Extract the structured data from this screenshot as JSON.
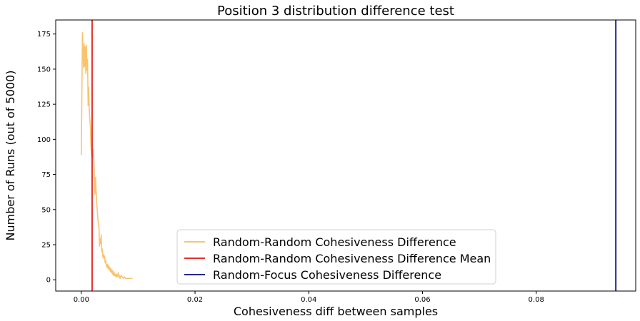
{
  "chart_data": {
    "type": "line",
    "title": "Position 3 distribution difference test",
    "xlabel": "Cohesiveness diff between samples",
    "ylabel": "Number of Runs (out of 5000)",
    "xlim": [
      -0.0045,
      0.0975
    ],
    "ylim": [
      -8,
      185
    ],
    "xticks": [
      0.0,
      0.02,
      0.04,
      0.06,
      0.08
    ],
    "xtick_labels": [
      "0.00",
      "0.02",
      "0.04",
      "0.06",
      "0.08"
    ],
    "yticks": [
      0,
      25,
      50,
      75,
      100,
      125,
      150,
      175
    ],
    "ytick_labels": [
      "0",
      "25",
      "50",
      "75",
      "100",
      "125",
      "150",
      "175"
    ],
    "grid": false,
    "legend_position": "bottom-center",
    "series": [
      {
        "name": "Random-Random Cohesiveness Difference",
        "kind": "line",
        "color": "#f9c46f",
        "x": [
          0.0,
          0.0002,
          0.0004,
          0.0005,
          0.0006,
          0.0007,
          0.0008,
          0.0009,
          0.001,
          0.0011,
          0.0012,
          0.0013,
          0.0014,
          0.0015,
          0.0016,
          0.0017,
          0.0018,
          0.0019,
          0.002,
          0.0021,
          0.0022,
          0.0023,
          0.0024,
          0.0025,
          0.0026,
          0.0027,
          0.0028,
          0.0029,
          0.003,
          0.0031,
          0.0032,
          0.0033,
          0.0034,
          0.0035,
          0.0036,
          0.0037,
          0.0038,
          0.0039,
          0.004,
          0.0041,
          0.0042,
          0.0043,
          0.0044,
          0.0045,
          0.0046,
          0.0047,
          0.0048,
          0.0049,
          0.005,
          0.0051,
          0.0052,
          0.0053,
          0.0054,
          0.0055,
          0.0056,
          0.0057,
          0.0058,
          0.0059,
          0.006,
          0.0061,
          0.0062,
          0.0063,
          0.0064,
          0.0065,
          0.0066,
          0.0067,
          0.0068,
          0.0069,
          0.007,
          0.0072,
          0.0074,
          0.0076,
          0.0078,
          0.008,
          0.0082,
          0.0085,
          0.0088,
          0.009
        ],
        "y": [
          89,
          176,
          151,
          168,
          152,
          166,
          147,
          167,
          149,
          157,
          124,
          137,
          122,
          114,
          109,
          95,
          88,
          92,
          87,
          93,
          85,
          72,
          61,
          73,
          64,
          55,
          50,
          44,
          40,
          38,
          24,
          29,
          26,
          32,
          20,
          22,
          16,
          18,
          15,
          17,
          12,
          14,
          10,
          9,
          11,
          8,
          10,
          7,
          9,
          6,
          8,
          5,
          7,
          4,
          6,
          3,
          5,
          3,
          4,
          2,
          4,
          2,
          3,
          5,
          2,
          3,
          1,
          2,
          3,
          2,
          1,
          2,
          1,
          1,
          1,
          1,
          1,
          1
        ]
      },
      {
        "name": "Random-Random Cohesiveness Difference Mean",
        "kind": "vline",
        "color": "#e8302a",
        "x": 0.0019
      },
      {
        "name": "Random-Focus Cohesiveness Difference",
        "kind": "vline",
        "color": "#242a8c",
        "x": 0.094
      }
    ]
  }
}
